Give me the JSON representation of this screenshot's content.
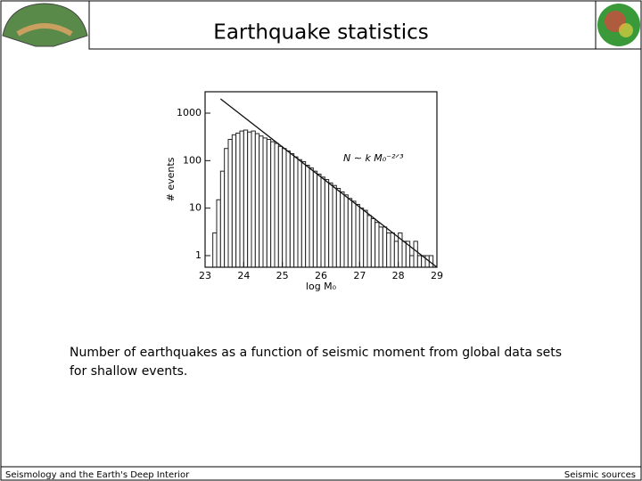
{
  "header": {
    "title": "Earthquake statistics"
  },
  "chart_data": {
    "type": "histogram",
    "xlabel": "log M₀",
    "ylabel": "# events",
    "annotation": "N ∼ k M₀⁻²ᐟ³",
    "bins": [
      23.2,
      23.3,
      23.4,
      23.5,
      23.6,
      23.7,
      23.8,
      23.9,
      24.0,
      24.1,
      24.2,
      24.3,
      24.4,
      24.5,
      24.6,
      24.7,
      24.8,
      24.9,
      25.0,
      25.1,
      25.2,
      25.3,
      25.4,
      25.5,
      25.6,
      25.7,
      25.8,
      25.9,
      26.0,
      26.1,
      26.2,
      26.3,
      26.4,
      26.5,
      26.6,
      26.7,
      26.8,
      26.9,
      27.0,
      27.1,
      27.2,
      27.3,
      27.4,
      27.5,
      27.6,
      27.7,
      27.8,
      27.9,
      28.0,
      28.1,
      28.2,
      28.3,
      28.4,
      28.5,
      28.6,
      28.7,
      28.8,
      28.9
    ],
    "values": [
      3,
      15,
      60,
      180,
      280,
      350,
      380,
      420,
      440,
      400,
      420,
      370,
      330,
      300,
      280,
      250,
      230,
      200,
      180,
      160,
      140,
      120,
      105,
      95,
      80,
      70,
      60,
      52,
      45,
      40,
      34,
      30,
      26,
      22,
      19,
      16,
      14,
      12,
      10,
      9,
      7,
      6,
      5,
      4,
      4,
      3,
      3,
      2,
      3,
      2,
      2,
      1,
      2,
      1,
      1,
      1,
      1
    ],
    "fit_line": {
      "x": [
        23.4,
        29
      ],
      "y": [
        2000,
        0.57
      ]
    },
    "xlim": [
      23,
      29
    ],
    "xticks": [
      23,
      24,
      25,
      26,
      27,
      28,
      29
    ],
    "ylim": [
      0.57,
      2820
    ],
    "yticks": [
      1,
      10,
      100,
      1000
    ],
    "log_y": true
  },
  "caption": "Number of earthquakes as a function of seismic moment from global data sets for shallow events.",
  "footer": {
    "left": "Seismology and the Earth's Deep Interior",
    "right": "Seismic sources"
  }
}
